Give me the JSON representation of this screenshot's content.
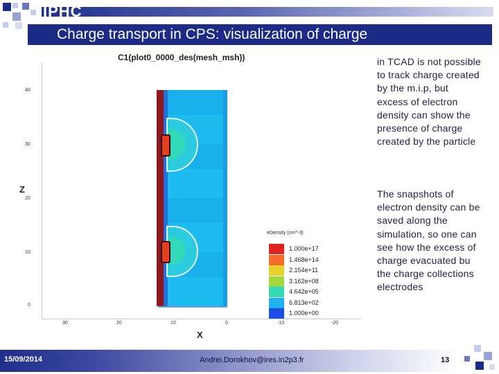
{
  "header": {
    "org": "IPHC",
    "title": "Charge transport in CPS: visualization of  charge"
  },
  "plot": {
    "title": "C1(plot0_0000_des(mesh_msh))",
    "y_axis_letter": "Z",
    "x_axis_letter": "X",
    "y_ticks": [
      "40",
      "30",
      "20",
      "10",
      "0"
    ],
    "x_ticks": [
      "30",
      "20",
      "10",
      "0",
      "-10",
      "-20"
    ],
    "legend_title": "eDensity (cm^-3)",
    "legend": [
      {
        "label": "1.000e+17",
        "color": "#e0231e"
      },
      {
        "label": "1.468e+14",
        "color": "#f46d2a"
      },
      {
        "label": "2.154e+11",
        "color": "#e8d12b"
      },
      {
        "label": "3.162e+08",
        "color": "#9ed83a"
      },
      {
        "label": "4.642e+05",
        "color": "#34d9b4"
      },
      {
        "label": "6.813e+02",
        "color": "#1fb2ef"
      },
      {
        "label": "1.000e+00",
        "color": "#1d4ee6"
      }
    ]
  },
  "notes": {
    "paragraph1": "in TCAD is not possible to track charge created by the m.i.p, but excess of electron density can show the presence of charge created by the particle",
    "paragraph2": "The snapshots of electron density can be saved along the simulation, so one can see how the excess of charge evacuated bu the charge collections electrodes"
  },
  "footer": {
    "date": "15/09/2014",
    "author": "Andrei.Dorokhov@ires.in2p3.fr",
    "page": "13"
  },
  "colors": {
    "header_blue": "#1c2b85",
    "device_cyan": "#19b4ef"
  }
}
